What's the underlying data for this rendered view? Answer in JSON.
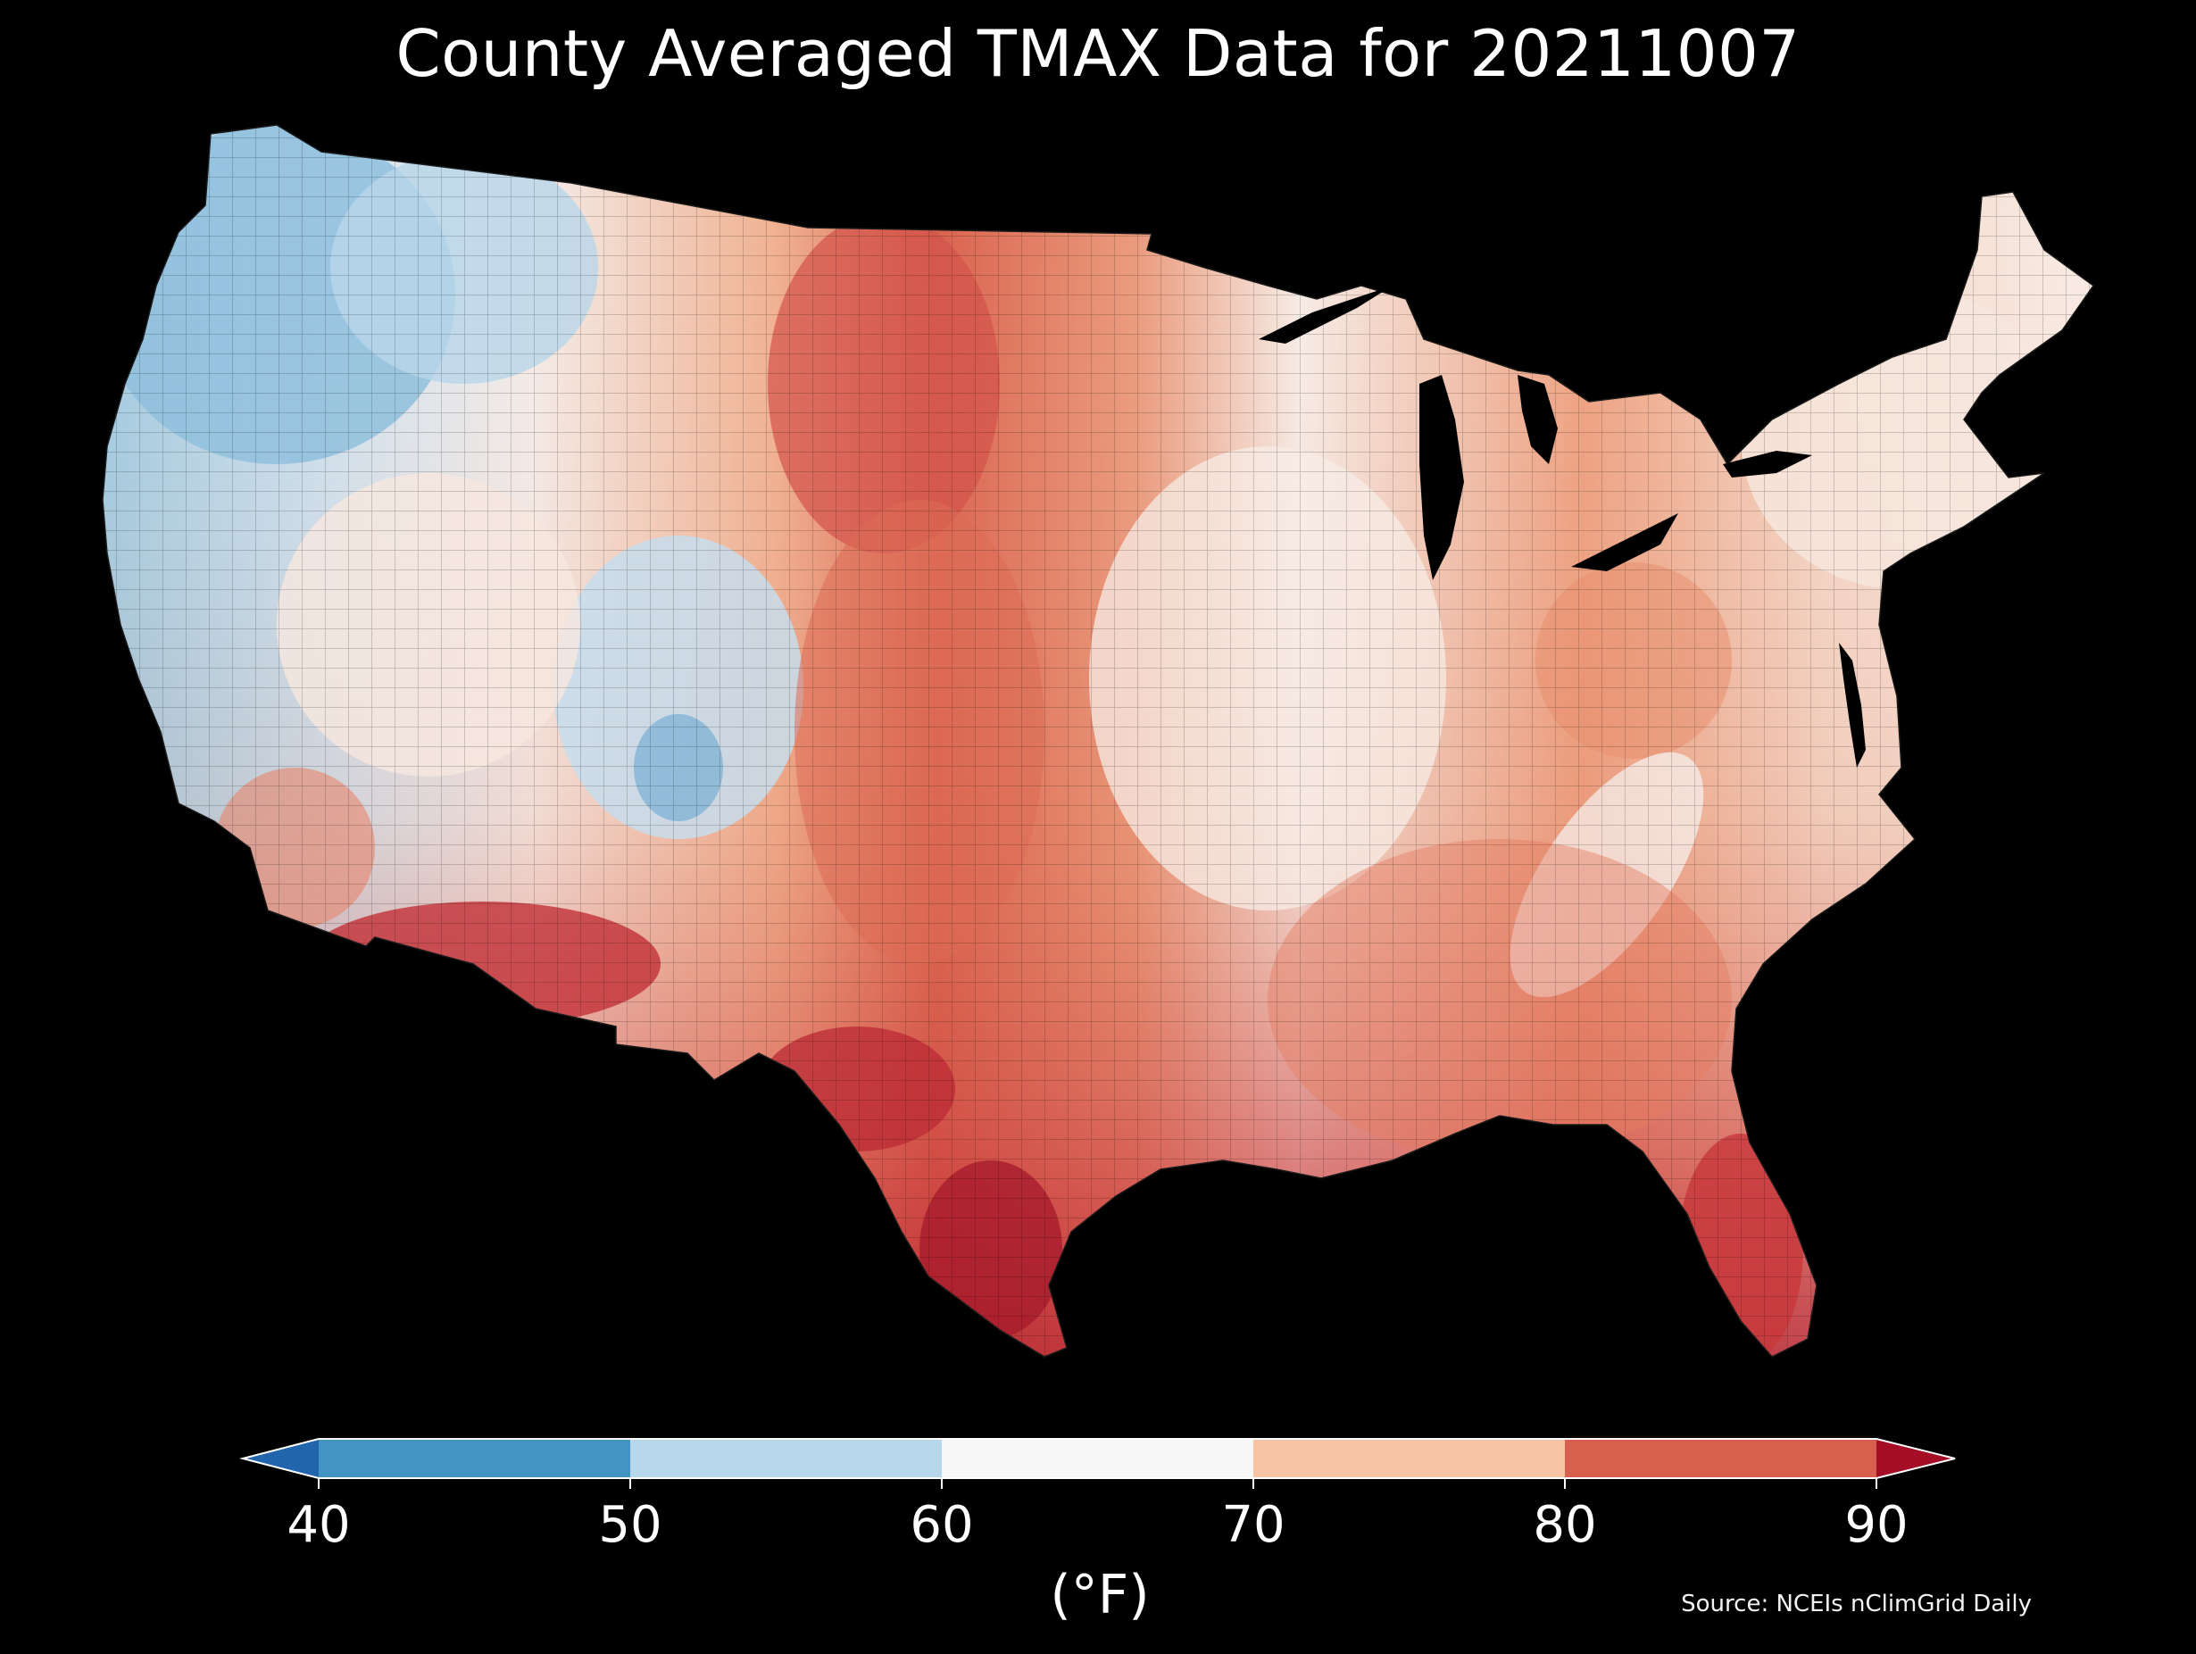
{
  "title": "County Averaged TMAX Data for 20211007",
  "map": {
    "region": "Contiguous United States",
    "background": "#000000",
    "regions": [
      {
        "name": "Pacific Northwest",
        "value_range": "40-60",
        "color": "#9ecae1"
      },
      {
        "name": "Northern Rockies",
        "value_range": "50-65",
        "color": "#d6e6f2"
      },
      {
        "name": "Great Basin",
        "value_range": "60-75",
        "color": "#f7f0ec"
      },
      {
        "name": "Desert Southwest",
        "value_range": "80-90+",
        "color": "#c2333a"
      },
      {
        "name": "Northern Plains",
        "value_range": "80-90",
        "color": "#d9604c"
      },
      {
        "name": "Southern Plains / Texas",
        "value_range": "80-90+",
        "color": "#c5383c"
      },
      {
        "name": "Midwest",
        "value_range": "65-75",
        "color": "#f4d6c6"
      },
      {
        "name": "Southeast",
        "value_range": "75-85",
        "color": "#e8906f"
      },
      {
        "name": "Northeast",
        "value_range": "65-75",
        "color": "#f6e0d6"
      },
      {
        "name": "Florida",
        "value_range": "85-90+",
        "color": "#c8373b"
      }
    ]
  },
  "colorbar": {
    "ticks": [
      "40",
      "50",
      "60",
      "70",
      "80",
      "90"
    ],
    "tick_values": [
      40,
      50,
      60,
      70,
      80,
      90
    ],
    "bins": [
      {
        "from": 40,
        "to": 50,
        "color": "#4393c3"
      },
      {
        "from": 50,
        "to": 60,
        "color": "#b7d7ea"
      },
      {
        "from": 60,
        "to": 70,
        "color": "#f7f7f7"
      },
      {
        "from": 70,
        "to": 80,
        "color": "#f8c4a6"
      },
      {
        "from": 80,
        "to": 90,
        "color": "#d6604d"
      }
    ],
    "under_color": "#2166ac",
    "over_color": "#a50f26",
    "unit_label": "(°F)"
  },
  "source": "Source: NCEIs nClimGrid Daily"
}
